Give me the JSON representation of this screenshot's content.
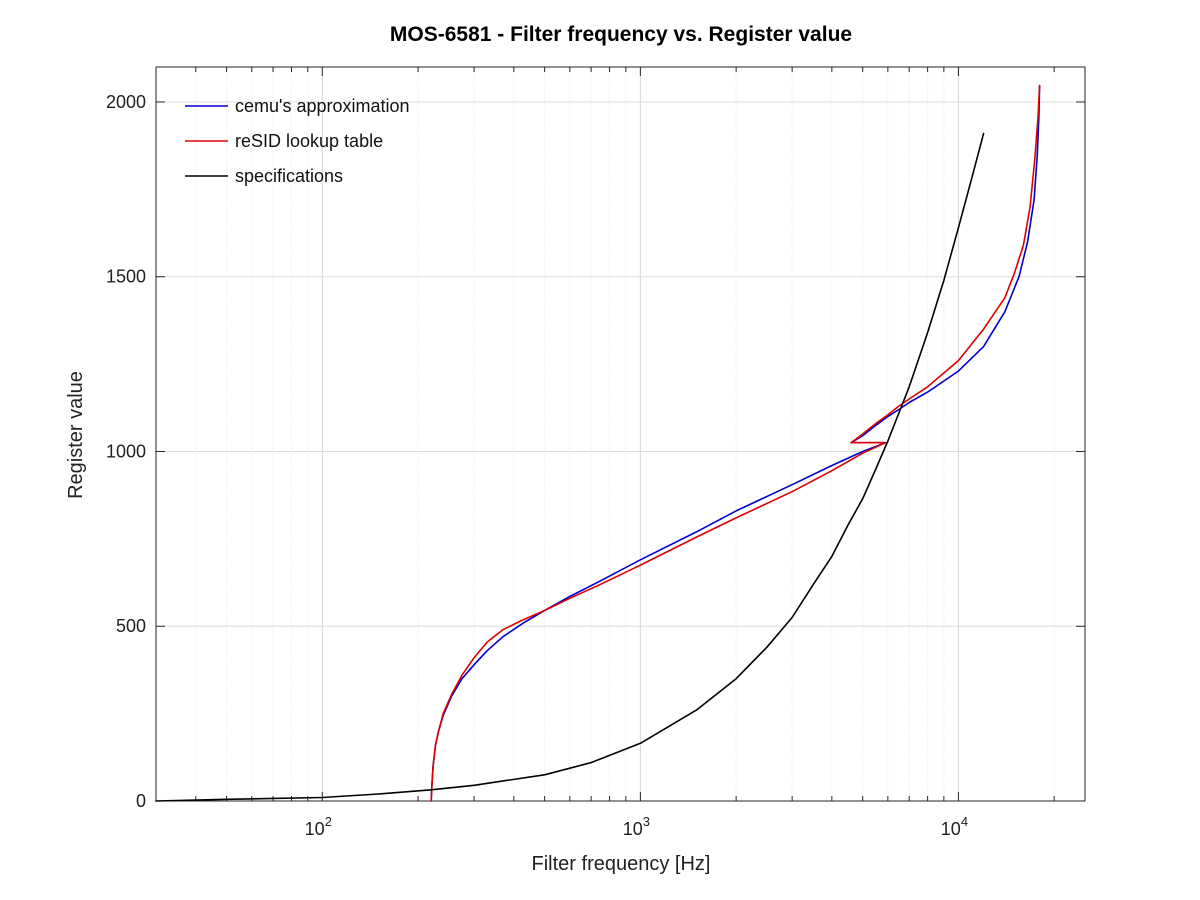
{
  "chart_data": {
    "type": "line",
    "title": "MOS-6581 - Filter frequency vs. Register value",
    "xlabel": "Filter frequency [Hz]",
    "ylabel": "Register value",
    "xscale": "log",
    "xlim": [
      30,
      25000
    ],
    "ylim": [
      0,
      2100
    ],
    "yticks": [
      0,
      500,
      1000,
      1500,
      2000
    ],
    "xticks": [
      {
        "value": 100,
        "base": "10",
        "exp": "2"
      },
      {
        "value": 1000,
        "base": "10",
        "exp": "3"
      },
      {
        "value": 10000,
        "base": "10",
        "exp": "4"
      }
    ],
    "grid": true,
    "legend_position": "top-left",
    "series": [
      {
        "name": "cemu's approximation",
        "color": "#0000cc",
        "x": [
          220,
          221,
          223,
          227,
          232,
          240,
          255,
          275,
          300,
          330,
          370,
          430,
          500,
          600,
          750,
          1000,
          1500,
          2000,
          3000,
          4000,
          5000,
          5900,
          4600,
          5000,
          5500,
          6000,
          6500,
          7000,
          8000,
          10000,
          12000,
          14000,
          15500,
          16500,
          17300,
          17700,
          17900,
          18000
        ],
        "y": [
          0,
          40,
          100,
          160,
          200,
          245,
          300,
          350,
          390,
          430,
          470,
          510,
          545,
          585,
          630,
          690,
          770,
          830,
          905,
          960,
          1000,
          1025,
          1025,
          1045,
          1075,
          1100,
          1120,
          1140,
          1170,
          1230,
          1300,
          1400,
          1500,
          1600,
          1720,
          1850,
          1960,
          2047
        ]
      },
      {
        "name": "reSID lookup table",
        "color": "#dd0000",
        "x": [
          220,
          221,
          223,
          227,
          232,
          240,
          255,
          275,
          300,
          330,
          370,
          420,
          500,
          600,
          750,
          1000,
          1500,
          2000,
          3000,
          4000,
          5000,
          5900,
          4600,
          5000,
          5500,
          6000,
          6500,
          7000,
          8000,
          10000,
          12000,
          14000,
          15000,
          16000,
          16800,
          17400,
          17800,
          18000
        ],
        "y": [
          0,
          40,
          100,
          160,
          200,
          250,
          305,
          360,
          410,
          455,
          490,
          515,
          545,
          580,
          620,
          675,
          755,
          810,
          885,
          945,
          995,
          1025,
          1025,
          1050,
          1080,
          1105,
          1130,
          1150,
          1185,
          1260,
          1350,
          1440,
          1510,
          1590,
          1700,
          1840,
          1960,
          2047
        ]
      },
      {
        "name": "specifications",
        "color": "#000000",
        "x": [
          30,
          50,
          100,
          150,
          220,
          300,
          500,
          700,
          1000,
          1500,
          2000,
          2500,
          3000,
          3500,
          4000,
          4500,
          5000,
          5500,
          6000,
          6500,
          7000,
          8000,
          9000,
          10000,
          11000,
          12000
        ],
        "y": [
          0,
          5,
          10,
          20,
          32,
          45,
          75,
          110,
          165,
          260,
          350,
          440,
          525,
          620,
          700,
          790,
          865,
          950,
          1030,
          1110,
          1185,
          1340,
          1490,
          1640,
          1780,
          1910
        ]
      }
    ]
  }
}
